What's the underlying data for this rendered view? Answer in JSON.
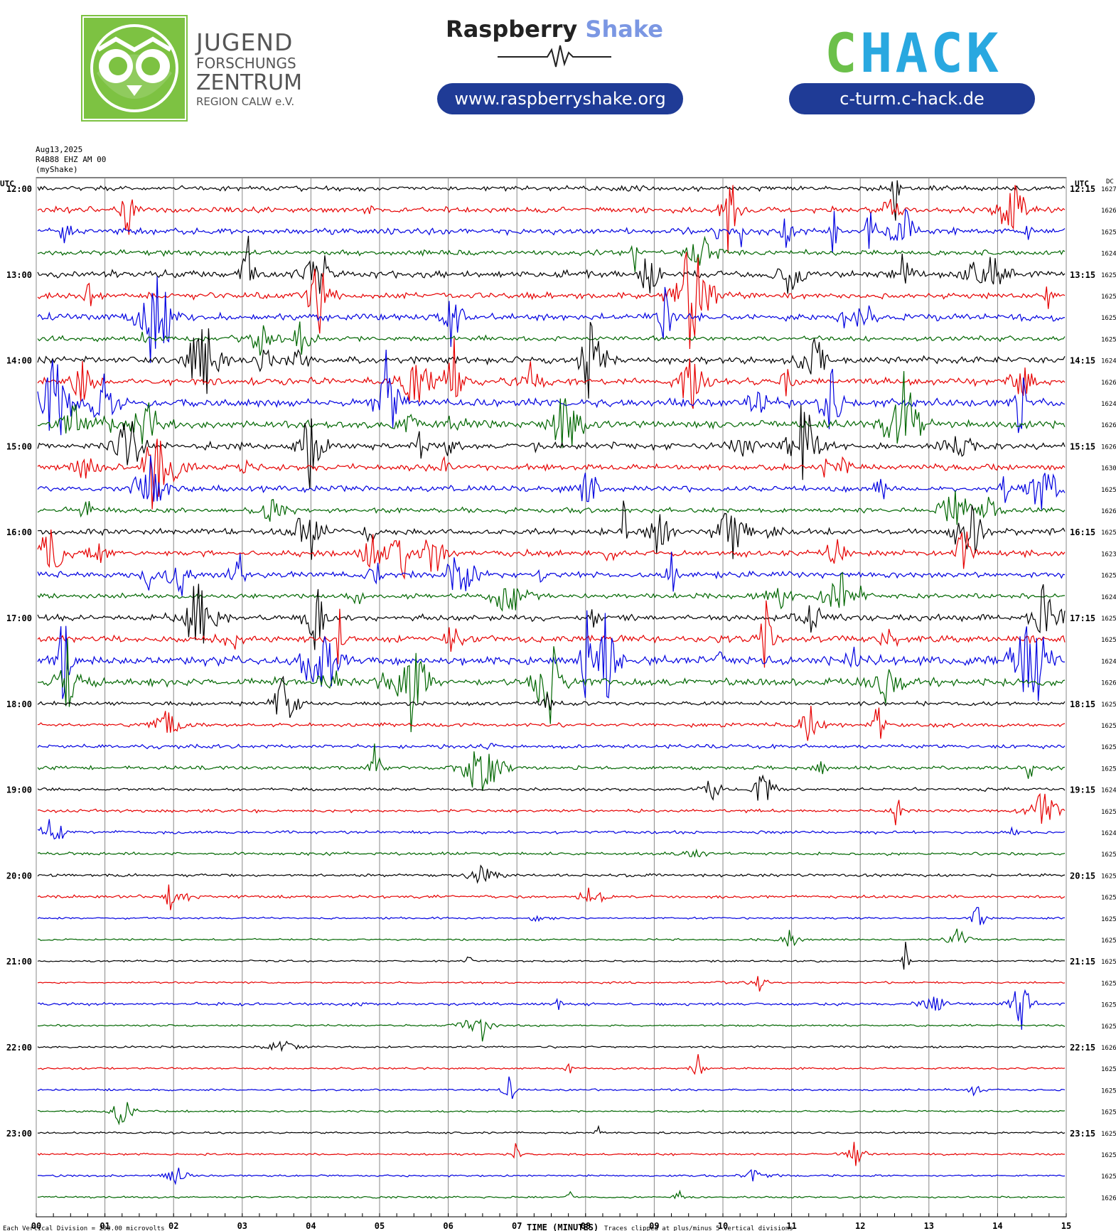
{
  "header": {
    "jfz": {
      "line1": "JUGEND",
      "line2": "FORSCHUNGS",
      "line3": "ZENTRUM",
      "line4": "REGION CALW e.V."
    },
    "raspberry": {
      "word1": "Raspberry",
      "word2": "Shake",
      "url": "www.raspberryshake.org"
    },
    "chack": {
      "c1": "C",
      "rest": "HACK",
      "url": "c-turm.c-hack.de"
    },
    "colors": {
      "jfz_green": "#7dc242",
      "pill_blue": "#1f3b96",
      "shake_blue": "#7b97e3",
      "chack_green": "#6cc04a",
      "chack_cyan": "#29a8e0"
    }
  },
  "meta": {
    "date": "Aug13,2025",
    "station": "R4B88 EHZ AM 00",
    "source": "(myShake)"
  },
  "chart_data": {
    "type": "seismogram",
    "title": "",
    "xlabel": "TIME (MINUTES)",
    "left_axis_label": "UTC",
    "right_axis_label": "UTC",
    "dc_label": "DC",
    "xlim": [
      0,
      15
    ],
    "x_ticks": [
      "00",
      "01",
      "02",
      "03",
      "04",
      "05",
      "06",
      "07",
      "08",
      "09",
      "10",
      "11",
      "12",
      "13",
      "14",
      "15"
    ],
    "left_hour_labels": [
      "12:00",
      "13:00",
      "14:00",
      "15:00",
      "16:00",
      "17:00",
      "18:00",
      "19:00",
      "20:00",
      "21:00",
      "22:00",
      "23:00"
    ],
    "right_hour_labels": [
      "12:15",
      "13:15",
      "14:15",
      "15:15",
      "16:15",
      "17:15",
      "18:15",
      "19:15",
      "20:15",
      "21:15",
      "22:15",
      "23:15"
    ],
    "trace_colors": [
      "#000000",
      "#e60000",
      "#0000e0",
      "#006600"
    ],
    "dc_values": [
      "16275",
      "16261",
      "16256",
      "16244",
      "16258",
      "16255",
      "16256",
      "16258",
      "16242",
      "16264",
      "16244",
      "16265",
      "16264",
      "16303",
      "16251",
      "16265",
      "16256",
      "16236",
      "16257",
      "16245",
      "16256",
      "16259",
      "16247",
      "16264",
      "16252",
      "16255",
      "16250",
      "16250",
      "16247",
      "16254",
      "16240",
      "16259",
      "16253",
      "16257",
      "16255",
      "16255",
      "16256",
      "16256",
      "16256",
      "16256",
      "16260",
      "16252",
      "16257",
      "16258",
      "16258",
      "16258",
      "16258",
      "16260"
    ],
    "noise_level": [
      5,
      6,
      6,
      5,
      7,
      6,
      7,
      5,
      7,
      7,
      8,
      8,
      7,
      6,
      6,
      5,
      6,
      6,
      6,
      5,
      6,
      7,
      9,
      8,
      4,
      4,
      4,
      4,
      3,
      3,
      3,
      3,
      3,
      3,
      2,
      2,
      2,
      2,
      3,
      2,
      2,
      2,
      2,
      2,
      2,
      2,
      2,
      2
    ],
    "bottom_note_left": "Each Vertical Division =  200.00 microvolts",
    "bottom_note_right": "Traces clipped at plus/minus 5 vertical divisions"
  }
}
